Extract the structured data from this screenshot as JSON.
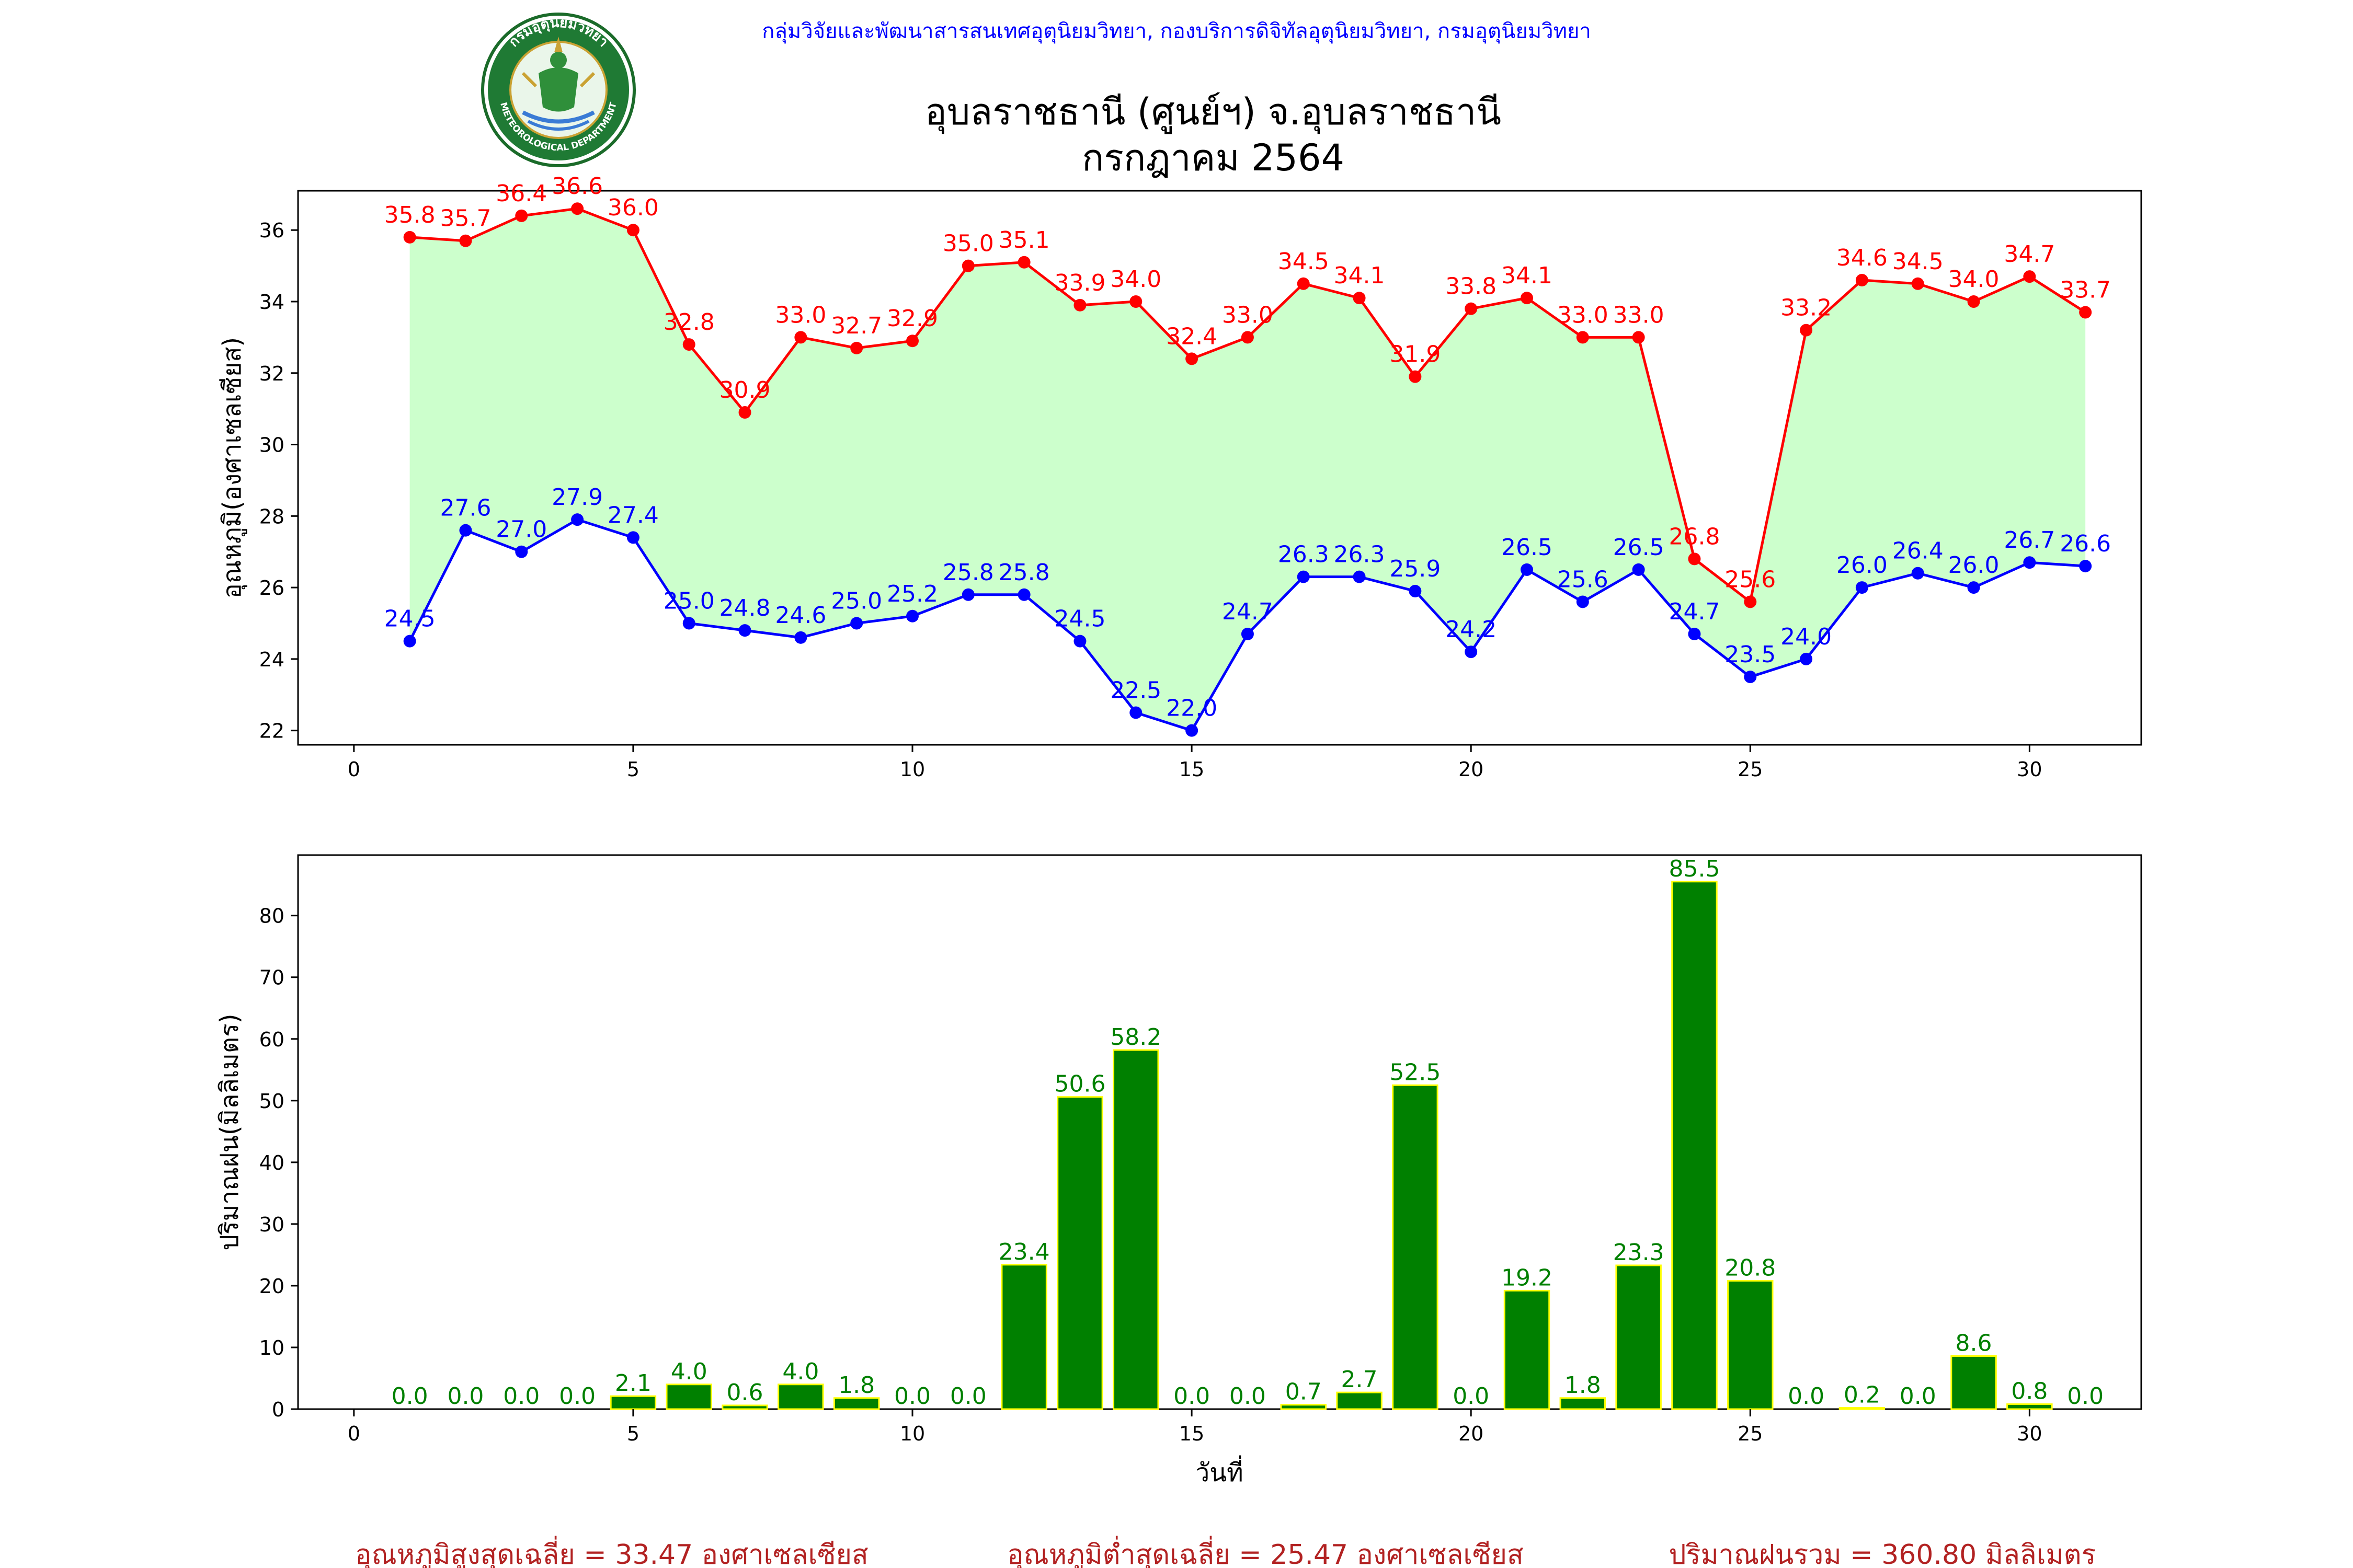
{
  "header": {
    "org_line": "กลุ่มวิจัยและพัฒนาสารสนเทศอุตุนิยมวิทยา, กองบริการดิจิทัลอุตุนิยมวิทยา, กรมอุตุนิยมวิทยา",
    "title_line1": "อุบลราชธานี (ศูนย์ฯ) จ.อุบลราชธานี",
    "title_line2": "กรกฎาคม 2564",
    "logo_top_text": "กรมอุตุนิยมวิทยา",
    "logo_bottom_text": "METEOROLOGICAL DEPARTMENT"
  },
  "colors": {
    "max_line": "#ff0000",
    "min_line": "#0000ff",
    "fill": "#ccffcc",
    "bar_fill": "#008000",
    "bar_edge": "#ffff00",
    "bar_label": "#008000",
    "summary_text": "#b22222",
    "org_text": "#0000ff"
  },
  "chart_data": [
    {
      "type": "line",
      "ylabel": "อุณหภูมิ(องศาเซลเซียส)",
      "xlabel": "",
      "x": [
        1,
        2,
        3,
        4,
        5,
        6,
        7,
        8,
        9,
        10,
        11,
        12,
        13,
        14,
        15,
        16,
        17,
        18,
        19,
        20,
        21,
        22,
        23,
        24,
        25,
        26,
        27,
        28,
        29,
        30,
        31
      ],
      "xlim": [
        -1,
        32
      ],
      "ylim": [
        21.6,
        37.1
      ],
      "xticks": [
        0,
        5,
        10,
        15,
        20,
        25,
        30
      ],
      "yticks": [
        22,
        24,
        26,
        28,
        30,
        32,
        34,
        36
      ],
      "fill_between": true,
      "series": [
        {
          "key": "max",
          "values": [
            35.8,
            35.7,
            36.4,
            36.6,
            36.0,
            32.8,
            30.9,
            33.0,
            32.7,
            32.9,
            35.0,
            35.1,
            33.9,
            34.0,
            32.4,
            33.0,
            34.5,
            34.1,
            31.9,
            33.8,
            34.1,
            33.0,
            33.0,
            26.8,
            25.6,
            33.2,
            34.6,
            34.5,
            34.0,
            34.7,
            33.7
          ]
        },
        {
          "key": "min",
          "values": [
            24.5,
            27.6,
            27.0,
            27.9,
            27.4,
            25.0,
            24.8,
            24.6,
            25.0,
            25.2,
            25.8,
            25.8,
            24.5,
            22.5,
            22.0,
            24.7,
            26.3,
            26.3,
            25.9,
            24.2,
            26.5,
            25.6,
            26.5,
            24.7,
            23.5,
            24.0,
            26.0,
            26.4,
            26.0,
            26.7,
            26.6
          ]
        }
      ]
    },
    {
      "type": "bar",
      "ylabel": "ปริมาณฝน(มิลลิเมตร)",
      "xlabel": "วันที่",
      "x": [
        1,
        2,
        3,
        4,
        5,
        6,
        7,
        8,
        9,
        10,
        11,
        12,
        13,
        14,
        15,
        16,
        17,
        18,
        19,
        20,
        21,
        22,
        23,
        24,
        25,
        26,
        27,
        28,
        29,
        30,
        31
      ],
      "values": [
        0.0,
        0.0,
        0.0,
        0.0,
        2.1,
        4.0,
        0.6,
        4.0,
        1.8,
        0.0,
        0.0,
        23.4,
        50.6,
        58.2,
        0.0,
        0.0,
        0.7,
        2.7,
        52.5,
        0.0,
        19.2,
        1.8,
        23.3,
        85.5,
        20.8,
        0.0,
        0.2,
        0.0,
        8.6,
        0.8,
        0.0
      ],
      "xlim": [
        -1,
        32
      ],
      "ylim": [
        0,
        89.8
      ],
      "xticks": [
        0,
        5,
        10,
        15,
        20,
        25,
        30
      ],
      "yticks": [
        0,
        10,
        20,
        30,
        40,
        50,
        60,
        70,
        80
      ]
    }
  ],
  "summary": {
    "avg_max": "อุณหภูมิสูงสุดเฉลี่ย = 33.47 องศาเซลเซียส",
    "avg_min": "อุณหภูมิต่ำสุดเฉลี่ย = 25.47 องศาเซลเซียส",
    "total_rain": "ปริมาณฝนรวม = 360.80 มิลลิเมตร"
  }
}
